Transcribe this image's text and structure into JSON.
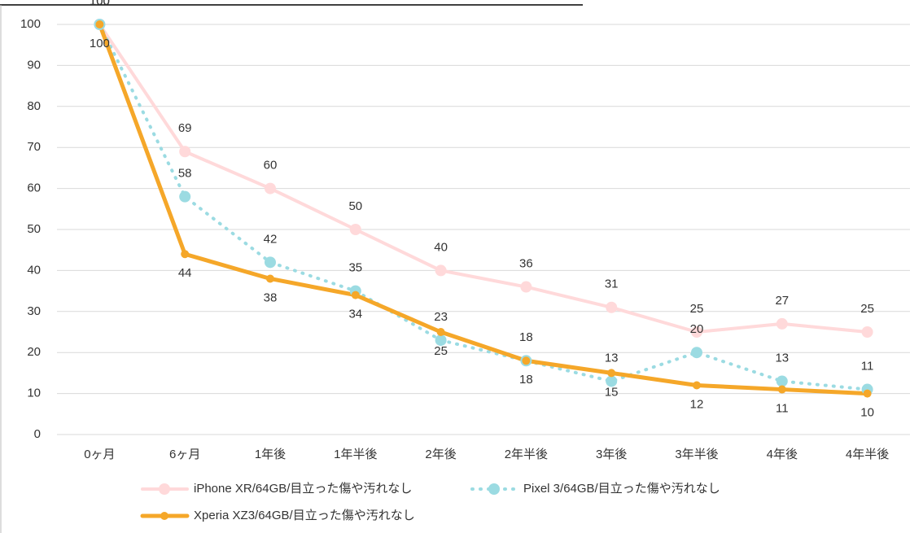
{
  "chart_data": {
    "type": "line",
    "categories": [
      "0ヶ月",
      "6ヶ月",
      "1年後",
      "1年半後",
      "2年後",
      "2年半後",
      "3年後",
      "3年半後",
      "4年後",
      "4年半後"
    ],
    "series": [
      {
        "name": "iPhone XR/64GB/目立った傷や汚れなし",
        "color": "#ffd9da",
        "values": [
          100,
          69,
          60,
          50,
          40,
          36,
          31,
          25,
          27,
          25
        ]
      },
      {
        "name": "Pixel 3/64GB/目立った傷や汚れなし",
        "color": "#9bdbe2",
        "values": [
          100,
          58,
          42,
          35,
          23,
          18,
          13,
          20,
          13,
          11
        ]
      },
      {
        "name": "Xperia XZ3/64GB/目立った傷や汚れなし",
        "color": "#f5a729",
        "values": [
          100,
          44,
          38,
          34,
          25,
          18,
          15,
          12,
          11,
          10
        ]
      }
    ],
    "ylim": [
      0,
      100
    ],
    "yticks": [
      0,
      10,
      20,
      30,
      40,
      50,
      60,
      70,
      80,
      90,
      100
    ],
    "grid": true,
    "legend": "bottom"
  }
}
